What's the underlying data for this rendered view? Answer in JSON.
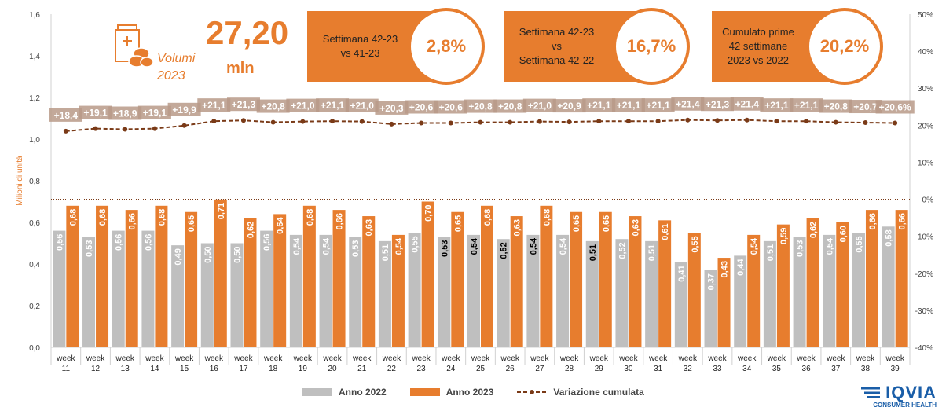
{
  "header": {
    "big_value": "27,20",
    "big_unit": "mln",
    "volumi_line1": "Volumi",
    "volumi_line2": "2023",
    "icon": "medicine-box-pills-icon"
  },
  "kpis": [
    {
      "text_lines": [
        "Settimana 42-23",
        "vs 41-23"
      ],
      "value": "2,8%"
    },
    {
      "text_lines": [
        "Settimana 42-23",
        "vs",
        "Settimana 42-22"
      ],
      "value": "16,7%"
    },
    {
      "text_lines": [
        "Cumulato prime",
        "42 settimane",
        "2023 vs 2022"
      ],
      "value": "20,2%"
    }
  ],
  "logo": {
    "name": "IQVIA",
    "sub": "CONSUMER HEALTH"
  },
  "colors": {
    "orange": "#e77d2e",
    "gray": "#bfbfbf",
    "cum_line": "#7a3a17",
    "label_box": "#b89a88"
  },
  "chart_data": {
    "type": "bar",
    "categories": [
      [
        "week",
        "11"
      ],
      [
        "week",
        "12"
      ],
      [
        "week",
        "13"
      ],
      [
        "week",
        "14"
      ],
      [
        "week",
        "15"
      ],
      [
        "week",
        "16"
      ],
      [
        "week",
        "17"
      ],
      [
        "week",
        "18"
      ],
      [
        "week",
        "19"
      ],
      [
        "week",
        "20"
      ],
      [
        "week",
        "21"
      ],
      [
        "week",
        "22"
      ],
      [
        "week",
        "23"
      ],
      [
        "week",
        "24"
      ],
      [
        "week",
        "25"
      ],
      [
        "week",
        "26"
      ],
      [
        "week",
        "27"
      ],
      [
        "week",
        "28"
      ],
      [
        "week",
        "29"
      ],
      [
        "week",
        "30"
      ],
      [
        "week",
        "31"
      ],
      [
        "week",
        "32"
      ],
      [
        "week",
        "33"
      ],
      [
        "week",
        "34"
      ],
      [
        "week",
        "35"
      ],
      [
        "week",
        "36"
      ],
      [
        "week",
        "37"
      ],
      [
        "week",
        "38"
      ],
      [
        "week",
        "39"
      ]
    ],
    "series": [
      {
        "name": "Anno 2022",
        "type": "bar",
        "color": "#bfbfbf",
        "values": [
          0.56,
          0.53,
          0.56,
          0.56,
          0.49,
          0.5,
          0.5,
          0.56,
          0.54,
          0.54,
          0.53,
          0.51,
          0.55,
          0.53,
          0.54,
          0.52,
          0.54,
          0.54,
          0.51,
          0.52,
          0.51,
          0.41,
          0.37,
          0.44,
          0.51,
          0.53,
          0.54,
          0.55,
          0.58
        ],
        "labels": [
          "0,56",
          "0,53",
          "0,56",
          "0,56",
          "0,49",
          "0,50",
          "0,50",
          "0,56",
          "0,54",
          "0,54",
          "0,53",
          "0,51",
          "0,55",
          "0,53",
          "0,54",
          "0,52",
          "0,54",
          "0,54",
          "0,51",
          "0,52",
          "0,51",
          "0,41",
          "0,37",
          "0,44",
          "0,51",
          "0,53",
          "0,54",
          "0,55",
          "0,58"
        ]
      },
      {
        "name": "Anno 2023",
        "type": "bar",
        "color": "#e77d2e",
        "values": [
          0.68,
          0.68,
          0.66,
          0.68,
          0.65,
          0.71,
          0.62,
          0.64,
          0.68,
          0.66,
          0.63,
          0.54,
          0.7,
          0.65,
          0.68,
          0.63,
          0.68,
          0.65,
          0.65,
          0.63,
          0.61,
          0.55,
          0.43,
          0.54,
          0.59,
          0.62,
          0.6,
          0.66,
          0.66
        ],
        "labels": [
          "0,68",
          "0,68",
          "0,66",
          "0,68",
          "0,65",
          "0,71",
          "0,62",
          "0,64",
          "0,68",
          "0,66",
          "0,63",
          "0,54",
          "0,70",
          "0,65",
          "0,68",
          "0,63",
          "0,68",
          "0,65",
          "0,65",
          "0,63",
          "0,61",
          "0,55",
          "0,43",
          "0,54",
          "0,59",
          "0,62",
          "0,60",
          "0,66",
          "0,66"
        ]
      },
      {
        "name": "Variazione cumulata",
        "type": "line",
        "axis": "right",
        "color": "#7a3a17",
        "values": [
          18.4,
          19.1,
          18.9,
          19.1,
          19.9,
          21.1,
          21.3,
          20.8,
          21.0,
          21.1,
          21.0,
          20.3,
          20.6,
          20.6,
          20.8,
          20.8,
          21.0,
          20.9,
          21.1,
          21.1,
          21.1,
          21.4,
          21.3,
          21.4,
          21.1,
          21.1,
          20.8,
          20.7,
          20.6
        ],
        "labels": [
          "+18,4",
          "+19,1",
          "+18,9",
          "+19,1",
          "+19,9",
          "+21,1",
          "+21,3",
          "+20,8",
          "+21,0",
          "+21,1",
          "+21,0",
          "+20,3",
          "+20,6",
          "+20,6",
          "+20,8",
          "+20,8",
          "+21,0",
          "+20,9",
          "+21,1",
          "+21,1",
          "+21,1",
          "+21,4",
          "+21,3",
          "+21,4",
          "+21,1",
          "+21,1",
          "+20,8",
          "+20,7",
          "+20,6%"
        ]
      }
    ],
    "ylabel": "Milioni di unità",
    "ylim": [
      0,
      1.6
    ],
    "yticks": [
      "0,0",
      "0,2",
      "0,4",
      "0,6",
      "0,8",
      "1,0",
      "1,2",
      "1,4",
      "1,6"
    ],
    "y2lim": [
      -40,
      50
    ],
    "y2ticks": [
      "-40%",
      "-30%",
      "-20%",
      "-10%",
      "0%",
      "10%",
      "20%",
      "30%",
      "40%",
      "50%"
    ],
    "grid": false,
    "legend": "bottom"
  }
}
